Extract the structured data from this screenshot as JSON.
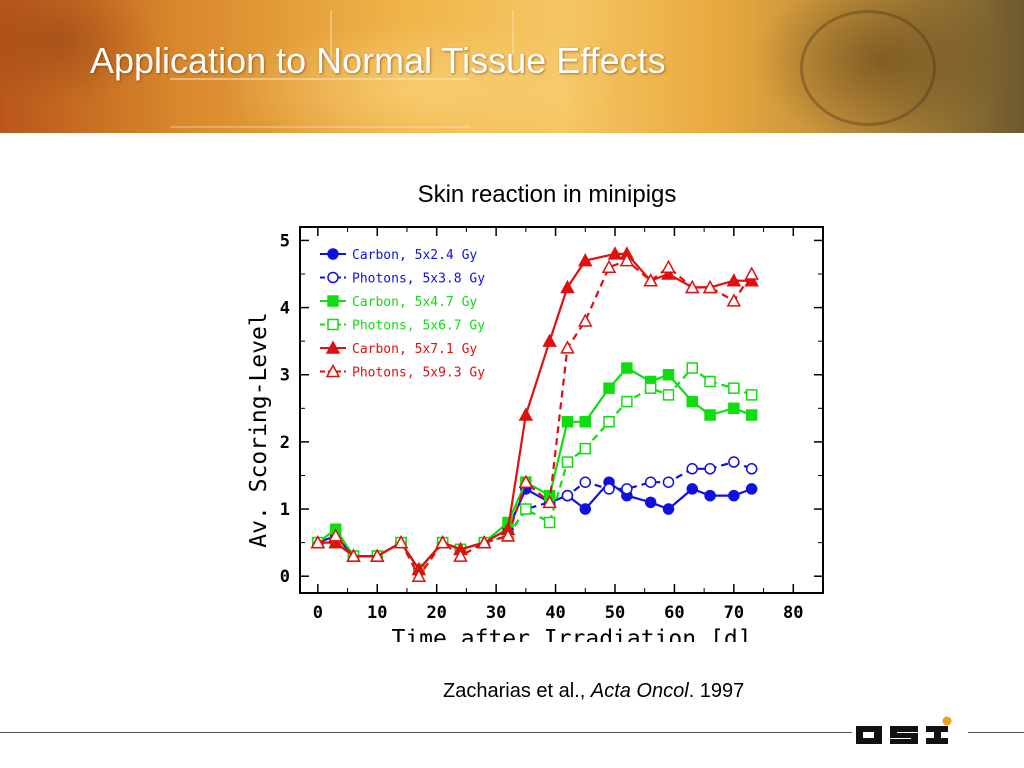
{
  "slide": {
    "title": "Application to Normal Tissue Effects",
    "chart_heading": "Skin reaction in minipigs",
    "citation_authors": "Zacharias et al.,",
    "citation_journal": "Acta Oncol",
    "citation_year": ". 1997",
    "logo_text": "GSI"
  },
  "chart_data": {
    "type": "line",
    "xlabel": "Time after Irradiation [d]",
    "ylabel": "Av. Scoring-Level",
    "xlim": [
      -3,
      85
    ],
    "ylim": [
      -0.25,
      5.2
    ],
    "xticks": [
      0,
      10,
      20,
      30,
      40,
      50,
      60,
      70,
      80
    ],
    "yticks": [
      0,
      1,
      2,
      3,
      4,
      5
    ],
    "legend_position": "top-left",
    "series": [
      {
        "name": "Carbon, 5x2.4 Gy",
        "color": "#1010e0",
        "marker": "circle",
        "filled": true,
        "dashed": false,
        "x": [
          0,
          3,
          6,
          10,
          14,
          17,
          21,
          24,
          28,
          32,
          35,
          39,
          42,
          45,
          49,
          52,
          56,
          59,
          63,
          66,
          70,
          73
        ],
        "y": [
          0.5,
          0.6,
          0.3,
          0.3,
          0.5,
          0.1,
          0.5,
          0.4,
          0.5,
          0.7,
          1.3,
          1.1,
          1.2,
          1.0,
          1.4,
          1.2,
          1.1,
          1.0,
          1.3,
          1.2,
          1.2,
          1.3
        ]
      },
      {
        "name": "Photons, 5x3.8 Gy",
        "color": "#1010e0",
        "marker": "circle",
        "filled": false,
        "dashed": true,
        "x": [
          0,
          3,
          6,
          10,
          14,
          17,
          21,
          24,
          28,
          32,
          35,
          39,
          42,
          45,
          49,
          52,
          56,
          59,
          63,
          66,
          70,
          73
        ],
        "y": [
          0.5,
          0.5,
          0.3,
          0.3,
          0.5,
          0.1,
          0.5,
          0.4,
          0.5,
          0.6,
          1.0,
          1.1,
          1.2,
          1.4,
          1.3,
          1.3,
          1.4,
          1.4,
          1.6,
          1.6,
          1.7,
          1.6
        ]
      },
      {
        "name": "Carbon, 5x4.7 Gy",
        "color": "#10dd10",
        "marker": "square",
        "filled": true,
        "dashed": false,
        "x": [
          0,
          3,
          6,
          10,
          14,
          17,
          21,
          24,
          28,
          32,
          35,
          39,
          42,
          45,
          49,
          52,
          56,
          59,
          63,
          66,
          70,
          73
        ],
        "y": [
          0.5,
          0.7,
          0.3,
          0.3,
          0.5,
          0.1,
          0.5,
          0.4,
          0.5,
          0.8,
          1.4,
          1.2,
          2.3,
          2.3,
          2.8,
          3.1,
          2.9,
          3.0,
          2.6,
          2.4,
          2.5,
          2.4
        ]
      },
      {
        "name": "Photons, 5x6.7 Gy",
        "color": "#10dd10",
        "marker": "square",
        "filled": false,
        "dashed": true,
        "x": [
          0,
          3,
          6,
          10,
          14,
          17,
          21,
          24,
          28,
          32,
          35,
          39,
          42,
          45,
          49,
          52,
          56,
          59,
          63,
          66,
          70,
          73
        ],
        "y": [
          0.5,
          0.5,
          0.3,
          0.3,
          0.5,
          0.1,
          0.5,
          0.4,
          0.5,
          0.6,
          1.0,
          0.8,
          1.7,
          1.9,
          2.3,
          2.6,
          2.8,
          2.7,
          3.1,
          2.9,
          2.8,
          2.7
        ]
      },
      {
        "name": "Carbon, 5x7.1 Gy",
        "color": "#e01010",
        "marker": "triangle",
        "filled": true,
        "dashed": false,
        "x": [
          0,
          3,
          6,
          10,
          14,
          17,
          21,
          24,
          28,
          32,
          35,
          39,
          42,
          45,
          50,
          52,
          56,
          59,
          63,
          66,
          70,
          73
        ],
        "y": [
          0.5,
          0.5,
          0.3,
          0.3,
          0.5,
          0.1,
          0.5,
          0.4,
          0.5,
          0.7,
          2.4,
          3.5,
          4.3,
          4.7,
          4.8,
          4.8,
          4.4,
          4.5,
          4.3,
          4.3,
          4.4,
          4.4
        ]
      },
      {
        "name": "Photons, 5x9.3 Gy",
        "color": "#e01010",
        "marker": "triangle",
        "filled": false,
        "dashed": true,
        "x": [
          0,
          3,
          6,
          10,
          14,
          17,
          21,
          24,
          28,
          32,
          35,
          39,
          42,
          45,
          49,
          52,
          56,
          59,
          63,
          66,
          70,
          73
        ],
        "y": [
          0.5,
          0.6,
          0.3,
          0.3,
          0.5,
          0.0,
          0.5,
          0.3,
          0.5,
          0.6,
          1.4,
          1.1,
          3.4,
          3.8,
          4.6,
          4.7,
          4.4,
          4.6,
          4.3,
          4.3,
          4.1,
          4.5
        ]
      }
    ]
  }
}
